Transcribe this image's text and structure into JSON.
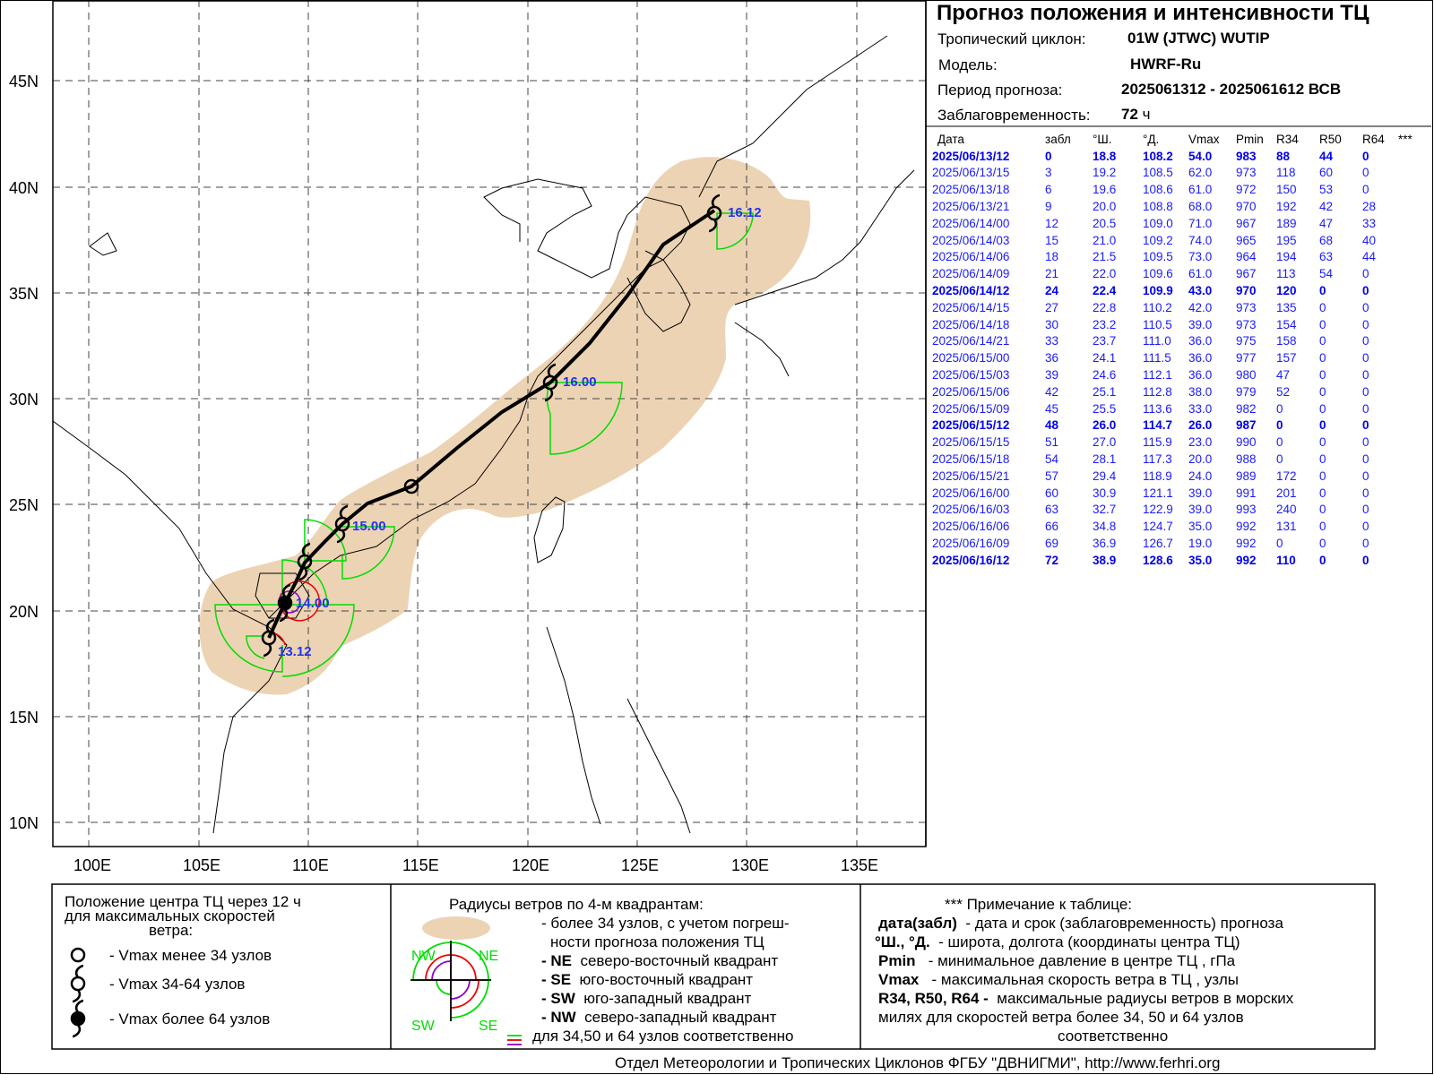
{
  "header": {
    "title": "Прогноз положения и интенсивности ТЦ",
    "cyclone_label": "Тропический циклон:",
    "cyclone_value": "01W (JTWC)  WUTIP",
    "model_label": "Модель:",
    "model_value": "HWRF-Ru",
    "period_label": "Период прогноза:",
    "period_value": "2025061312 - 2025061612 ВСВ",
    "lead_label": "Заблаговременность:",
    "lead_value": "72",
    "lead_unit": "ч"
  },
  "table": {
    "columns": [
      "Дата",
      "забл",
      "°Ш.",
      "°Д.",
      "Vmax",
      "Pmin",
      "R34",
      "R50",
      "R64",
      "***"
    ],
    "rows": [
      [
        "2025/06/13/12",
        "0",
        "18.8",
        "108.2",
        "54.0",
        "983",
        "88",
        "44",
        "0"
      ],
      [
        "2025/06/13/15",
        "3",
        "19.2",
        "108.5",
        "62.0",
        "973",
        "118",
        "60",
        "0"
      ],
      [
        "2025/06/13/18",
        "6",
        "19.6",
        "108.6",
        "61.0",
        "972",
        "150",
        "53",
        "0"
      ],
      [
        "2025/06/13/21",
        "9",
        "20.0",
        "108.8",
        "68.0",
        "970",
        "192",
        "42",
        "28"
      ],
      [
        "2025/06/14/00",
        "12",
        "20.5",
        "109.0",
        "71.0",
        "967",
        "189",
        "47",
        "33"
      ],
      [
        "2025/06/14/03",
        "15",
        "21.0",
        "109.2",
        "74.0",
        "965",
        "195",
        "68",
        "40"
      ],
      [
        "2025/06/14/06",
        "18",
        "21.5",
        "109.5",
        "73.0",
        "964",
        "194",
        "63",
        "44"
      ],
      [
        "2025/06/14/09",
        "21",
        "22.0",
        "109.6",
        "61.0",
        "967",
        "113",
        "54",
        "0"
      ],
      [
        "2025/06/14/12",
        "24",
        "22.4",
        "109.9",
        "43.0",
        "970",
        "120",
        "0",
        "0"
      ],
      [
        "2025/06/14/15",
        "27",
        "22.8",
        "110.2",
        "42.0",
        "973",
        "135",
        "0",
        "0"
      ],
      [
        "2025/06/14/18",
        "30",
        "23.2",
        "110.5",
        "39.0",
        "973",
        "154",
        "0",
        "0"
      ],
      [
        "2025/06/14/21",
        "33",
        "23.7",
        "111.0",
        "36.0",
        "975",
        "158",
        "0",
        "0"
      ],
      [
        "2025/06/15/00",
        "36",
        "24.1",
        "111.5",
        "36.0",
        "977",
        "157",
        "0",
        "0"
      ],
      [
        "2025/06/15/03",
        "39",
        "24.6",
        "112.1",
        "36.0",
        "980",
        "47",
        "0",
        "0"
      ],
      [
        "2025/06/15/06",
        "42",
        "25.1",
        "112.8",
        "38.0",
        "979",
        "52",
        "0",
        "0"
      ],
      [
        "2025/06/15/09",
        "45",
        "25.5",
        "113.6",
        "33.0",
        "982",
        "0",
        "0",
        "0"
      ],
      [
        "2025/06/15/12",
        "48",
        "26.0",
        "114.7",
        "26.0",
        "987",
        "0",
        "0",
        "0"
      ],
      [
        "2025/06/15/15",
        "51",
        "27.0",
        "115.9",
        "23.0",
        "990",
        "0",
        "0",
        "0"
      ],
      [
        "2025/06/15/18",
        "54",
        "28.1",
        "117.3",
        "20.0",
        "988",
        "0",
        "0",
        "0"
      ],
      [
        "2025/06/15/21",
        "57",
        "29.4",
        "118.9",
        "24.0",
        "989",
        "172",
        "0",
        "0"
      ],
      [
        "2025/06/16/00",
        "60",
        "30.9",
        "121.1",
        "39.0",
        "991",
        "201",
        "0",
        "0"
      ],
      [
        "2025/06/16/03",
        "63",
        "32.7",
        "122.9",
        "39.0",
        "993",
        "240",
        "0",
        "0"
      ],
      [
        "2025/06/16/06",
        "66",
        "34.8",
        "124.7",
        "35.0",
        "992",
        "131",
        "0",
        "0"
      ],
      [
        "2025/06/16/09",
        "69",
        "36.9",
        "126.7",
        "19.0",
        "992",
        "0",
        "0",
        "0"
      ],
      [
        "2025/06/16/12",
        "72",
        "38.9",
        "128.6",
        "35.0",
        "992",
        "110",
        "0",
        "0"
      ]
    ],
    "bold_rows": [
      0,
      8,
      16,
      24
    ]
  },
  "map": {
    "lon_labels": [
      "100E",
      "105E",
      "110E",
      "115E",
      "120E",
      "125E",
      "130E",
      "135E"
    ],
    "lat_labels": [
      "45N",
      "40N",
      "35N",
      "30N",
      "25N",
      "20N",
      "15N",
      "10N"
    ],
    "track_labels": [
      "16.12",
      "16.00",
      "15.00",
      "14.00",
      "13.12"
    ],
    "colors": {
      "uncertainty": "#ecd3b4",
      "r34": "#00dd00",
      "r50": "#ee0000",
      "r64": "#8800cc",
      "label": "#2233ee",
      "track": "#000000"
    }
  },
  "legend1": {
    "title1": "Положение центра ТЦ через 12 ч",
    "title2": "для максимальных скоростей",
    "title3": "ветра:",
    "item1": "- Vmax   менее 34 узлов",
    "item2": "- Vmax   34-64 узлов",
    "item3": "- Vmax   более 64 узлов"
  },
  "legend2": {
    "title": "Радиусы ветров по 4-м квадрантам:",
    "l1": "- более 34 узлов, с учетом погреш-",
    "l2": "ности прогноза положения ТЦ",
    "ne_key": "- NE",
    "ne_text": "северо-восточный квадрант",
    "se_key": "- SE",
    "se_text": "юго-восточный квадрант",
    "sw_key": "- SW",
    "sw_text": "юго-западный квадрант",
    "nw_key": "- NW",
    "nw_text": "северо-западный квадрант",
    "last": "для 34,50 и 64 узлов соответственно",
    "q_nw": "NW",
    "q_ne": "NE",
    "q_sw": "SW",
    "q_se": "SE"
  },
  "legend3": {
    "title": "*** Примечание к таблице:",
    "k1": "дата(забл)",
    "v1": "- дата и срок (заблаговременность) прогноза",
    "k2": "°Ш., °Д.",
    "v2": "- широта, долгота   (координаты центра ТЦ)",
    "k3": "Pmin",
    "v3": "- минимальное давление в центре ТЦ , гПа",
    "k4": "Vmax",
    "v4": "-  максимальная скорость ветра в ТЦ , узлы",
    "k5": "R34, R50, R64 -",
    "v5": "максимальные радиусы ветров в морских",
    "v6": "милях для скоростей ветра более 34, 50 и 64 узлов",
    "v7": "соответственно"
  },
  "footer": "Отдел Метеорологии и Тропических Циклонов ФГБУ \"ДВНИГМИ\",  http://www.ferhri.org"
}
